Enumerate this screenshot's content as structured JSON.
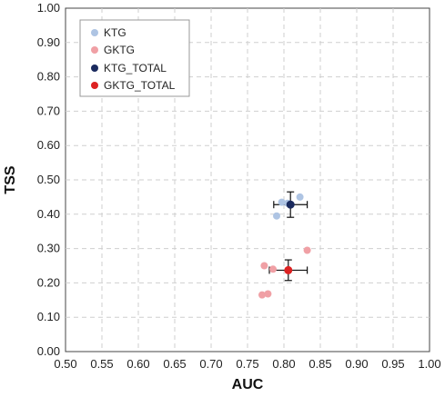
{
  "chart_data": {
    "type": "scatter",
    "xlabel": "AUC",
    "ylabel": "TSS",
    "xlim": [
      0.5,
      1.0
    ],
    "ylim": [
      0.0,
      1.0
    ],
    "x_ticks": [
      "0.50",
      "0.55",
      "0.60",
      "0.65",
      "0.70",
      "0.75",
      "0.80",
      "0.85",
      "0.90",
      "0.95",
      "1.00"
    ],
    "y_ticks": [
      "0.00",
      "0.10",
      "0.20",
      "0.30",
      "0.40",
      "0.50",
      "0.60",
      "0.70",
      "0.80",
      "0.90",
      "1.00"
    ],
    "grid": true,
    "legend_position": "top-left",
    "series": [
      {
        "name": "KTG",
        "color": "#aec4e3",
        "points": [
          {
            "x": 0.79,
            "y": 0.395
          },
          {
            "x": 0.797,
            "y": 0.435
          },
          {
            "x": 0.805,
            "y": 0.432
          },
          {
            "x": 0.822,
            "y": 0.45
          }
        ]
      },
      {
        "name": "GKTG",
        "color": "#f0a0a5",
        "points": [
          {
            "x": 0.77,
            "y": 0.165
          },
          {
            "x": 0.778,
            "y": 0.168
          },
          {
            "x": 0.773,
            "y": 0.25
          },
          {
            "x": 0.785,
            "y": 0.24
          },
          {
            "x": 0.832,
            "y": 0.295
          }
        ]
      },
      {
        "name": "KTG_TOTAL",
        "color": "#1a2a5e",
        "points": [
          {
            "x": 0.809,
            "y": 0.428,
            "x_err": 0.023,
            "y_err": 0.037
          }
        ]
      },
      {
        "name": "GKTG_TOTAL",
        "color": "#dd2222",
        "points": [
          {
            "x": 0.806,
            "y": 0.237,
            "x_err": 0.026,
            "y_err": 0.03
          }
        ]
      }
    ]
  }
}
